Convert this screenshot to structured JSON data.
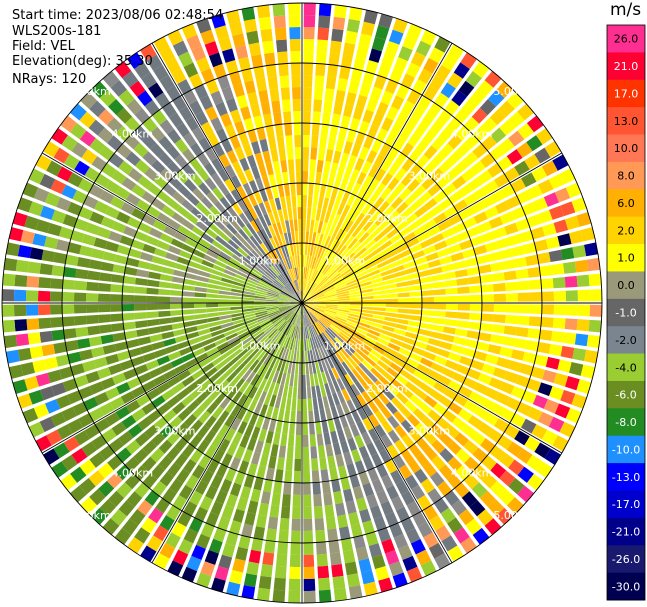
{
  "header": {
    "start_time": "Start time: 2023/08/06 02:48:54",
    "site": "WLS200s-181",
    "field": "Field: VEL",
    "elevation": "Elevation(deg): 35.30",
    "nrays": "NRays: 120"
  },
  "chart_data": {
    "type": "heatmap",
    "projection": "polar-ppi",
    "field": "VEL",
    "units": "m/s",
    "n_rays": 120,
    "elevation_deg": 35.3,
    "max_range_km": 5.0,
    "range_rings_km": [
      1,
      2,
      3,
      4,
      5
    ],
    "range_labels": [
      "1.00km",
      "2.00km",
      "3.00km",
      "4.00km",
      "5.00km"
    ],
    "colorbar": {
      "title": "m/s",
      "ticks": [
        "26.0",
        "21.0",
        "17.0",
        "13.0",
        "10.0",
        "8.0",
        "6.0",
        "2.0",
        "1.0",
        "0.0",
        "-1.0",
        "-2.0",
        "-4.0",
        "-6.0",
        "-8.0",
        "-10.0",
        "-13.0",
        "-17.0",
        "-21.0",
        "-26.0",
        "-30.0"
      ],
      "colors": [
        "#ff2f92",
        "#ff0033",
        "#ff3300",
        "#ff5533",
        "#ff7755",
        "#ff9955",
        "#ffb000",
        "#ffd300",
        "#ffff00",
        "#9a9a7a",
        "#666666",
        "#7a8590",
        "#9acd32",
        "#6b8e23",
        "#228b22",
        "#1e90ff",
        "#0000ff",
        "#0000cd",
        "#00008b",
        "#191970",
        "#000050"
      ]
    },
    "pattern": {
      "receding_azimuth_deg": 60,
      "approaching_azimuth_deg": 240,
      "noise_start_km": 4.3
    }
  }
}
